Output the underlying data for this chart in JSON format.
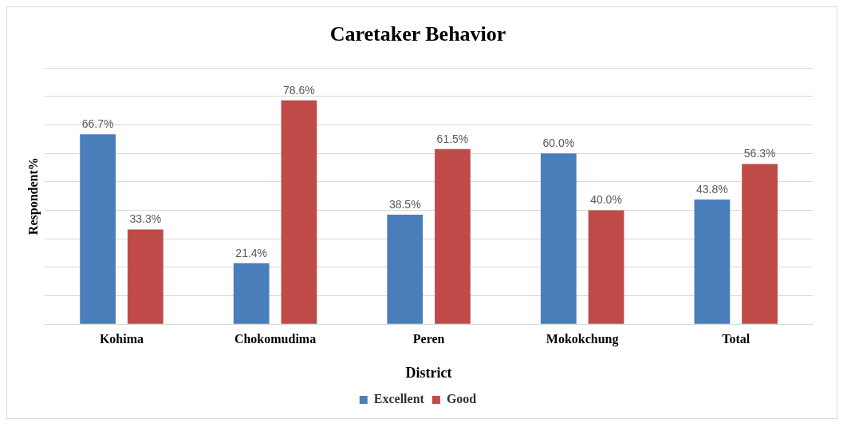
{
  "chart_data": {
    "type": "bar",
    "title": "Caretaker Behavior",
    "xlabel": "District",
    "ylabel": "Respondent%",
    "categories": [
      "Kohima",
      "Chokomudima",
      "Peren",
      "Mokokchung",
      "Total"
    ],
    "series": [
      {
        "name": "Excellent",
        "color": "#4a7ebb",
        "values": [
          66.7,
          21.4,
          38.5,
          60.0,
          43.8
        ],
        "value_labels": [
          "66.7%",
          "21.4%",
          "38.5%",
          "60.0%",
          "43.8%"
        ]
      },
      {
        "name": "Good",
        "color": "#be4b48",
        "values": [
          33.3,
          78.6,
          61.5,
          40.0,
          56.3
        ],
        "value_labels": [
          "33.3%",
          "78.6%",
          "61.5%",
          "40.0%",
          "56.3%"
        ]
      }
    ],
    "ylim": [
      0,
      90
    ],
    "yticks": [
      {
        "value": 0,
        "label": null
      },
      {
        "value": 10,
        "label": null
      },
      {
        "value": 20,
        "label": null
      },
      {
        "value": 30,
        "label": null
      },
      {
        "value": 40,
        "label": null
      },
      {
        "value": 50,
        "label": null
      },
      {
        "value": 60,
        "label": null
      },
      {
        "value": 70,
        "label": null
      },
      {
        "value": 80,
        "label": null
      },
      {
        "value": 90,
        "label": null
      }
    ],
    "tick_labels": "x",
    "grid": "y",
    "legend": "bottom"
  }
}
